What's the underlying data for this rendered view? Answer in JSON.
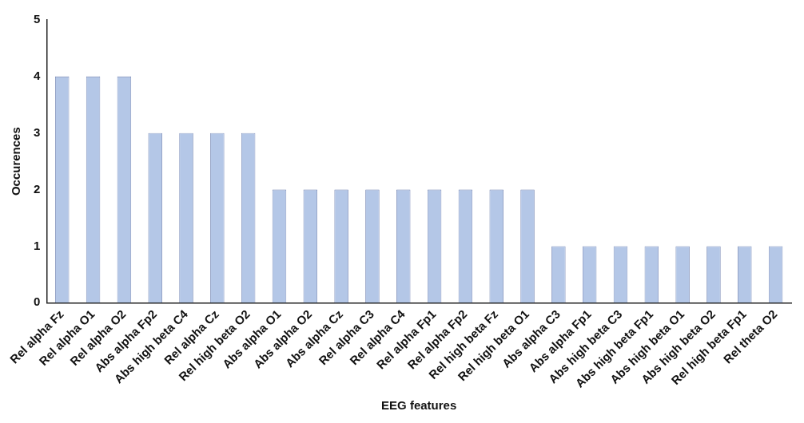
{
  "chart_data": {
    "type": "bar",
    "xlabel": "EEG features",
    "ylabel": "Occurences",
    "categories": [
      "Rel alpha Fz",
      "Rel alpha O1",
      "Rel alpha O2",
      "Abs alpha Fp2",
      "Abs high beta C4",
      "Rel alpha Cz",
      "Rel high beta O2",
      "Abs alpha O1",
      "Abs alpha O2",
      "Abs alpha Cz",
      "Rel alpha C3",
      "Rel alpha C4",
      "Rel alpha Fp1",
      "Rel alpha Fp2",
      "Rel high beta Fz",
      "Rel high beta O1",
      "Abs alpha C3",
      "Abs alpha Fp1",
      "Abs high beta C3",
      "Abs high beta Fp1",
      "Abs high beta O1",
      "Abs high beta O2",
      "Rel high beta Fp1",
      "Rel theta O2"
    ],
    "values": [
      4,
      4,
      4,
      3,
      3,
      3,
      3,
      2,
      2,
      2,
      2,
      2,
      2,
      2,
      2,
      2,
      1,
      1,
      1,
      1,
      1,
      1,
      1,
      1
    ],
    "color": "#b4c7e7",
    "ylim": [
      0,
      5
    ],
    "yticks": [
      0,
      1,
      2,
      3,
      4,
      5
    ],
    "grid": false,
    "legend": false
  }
}
